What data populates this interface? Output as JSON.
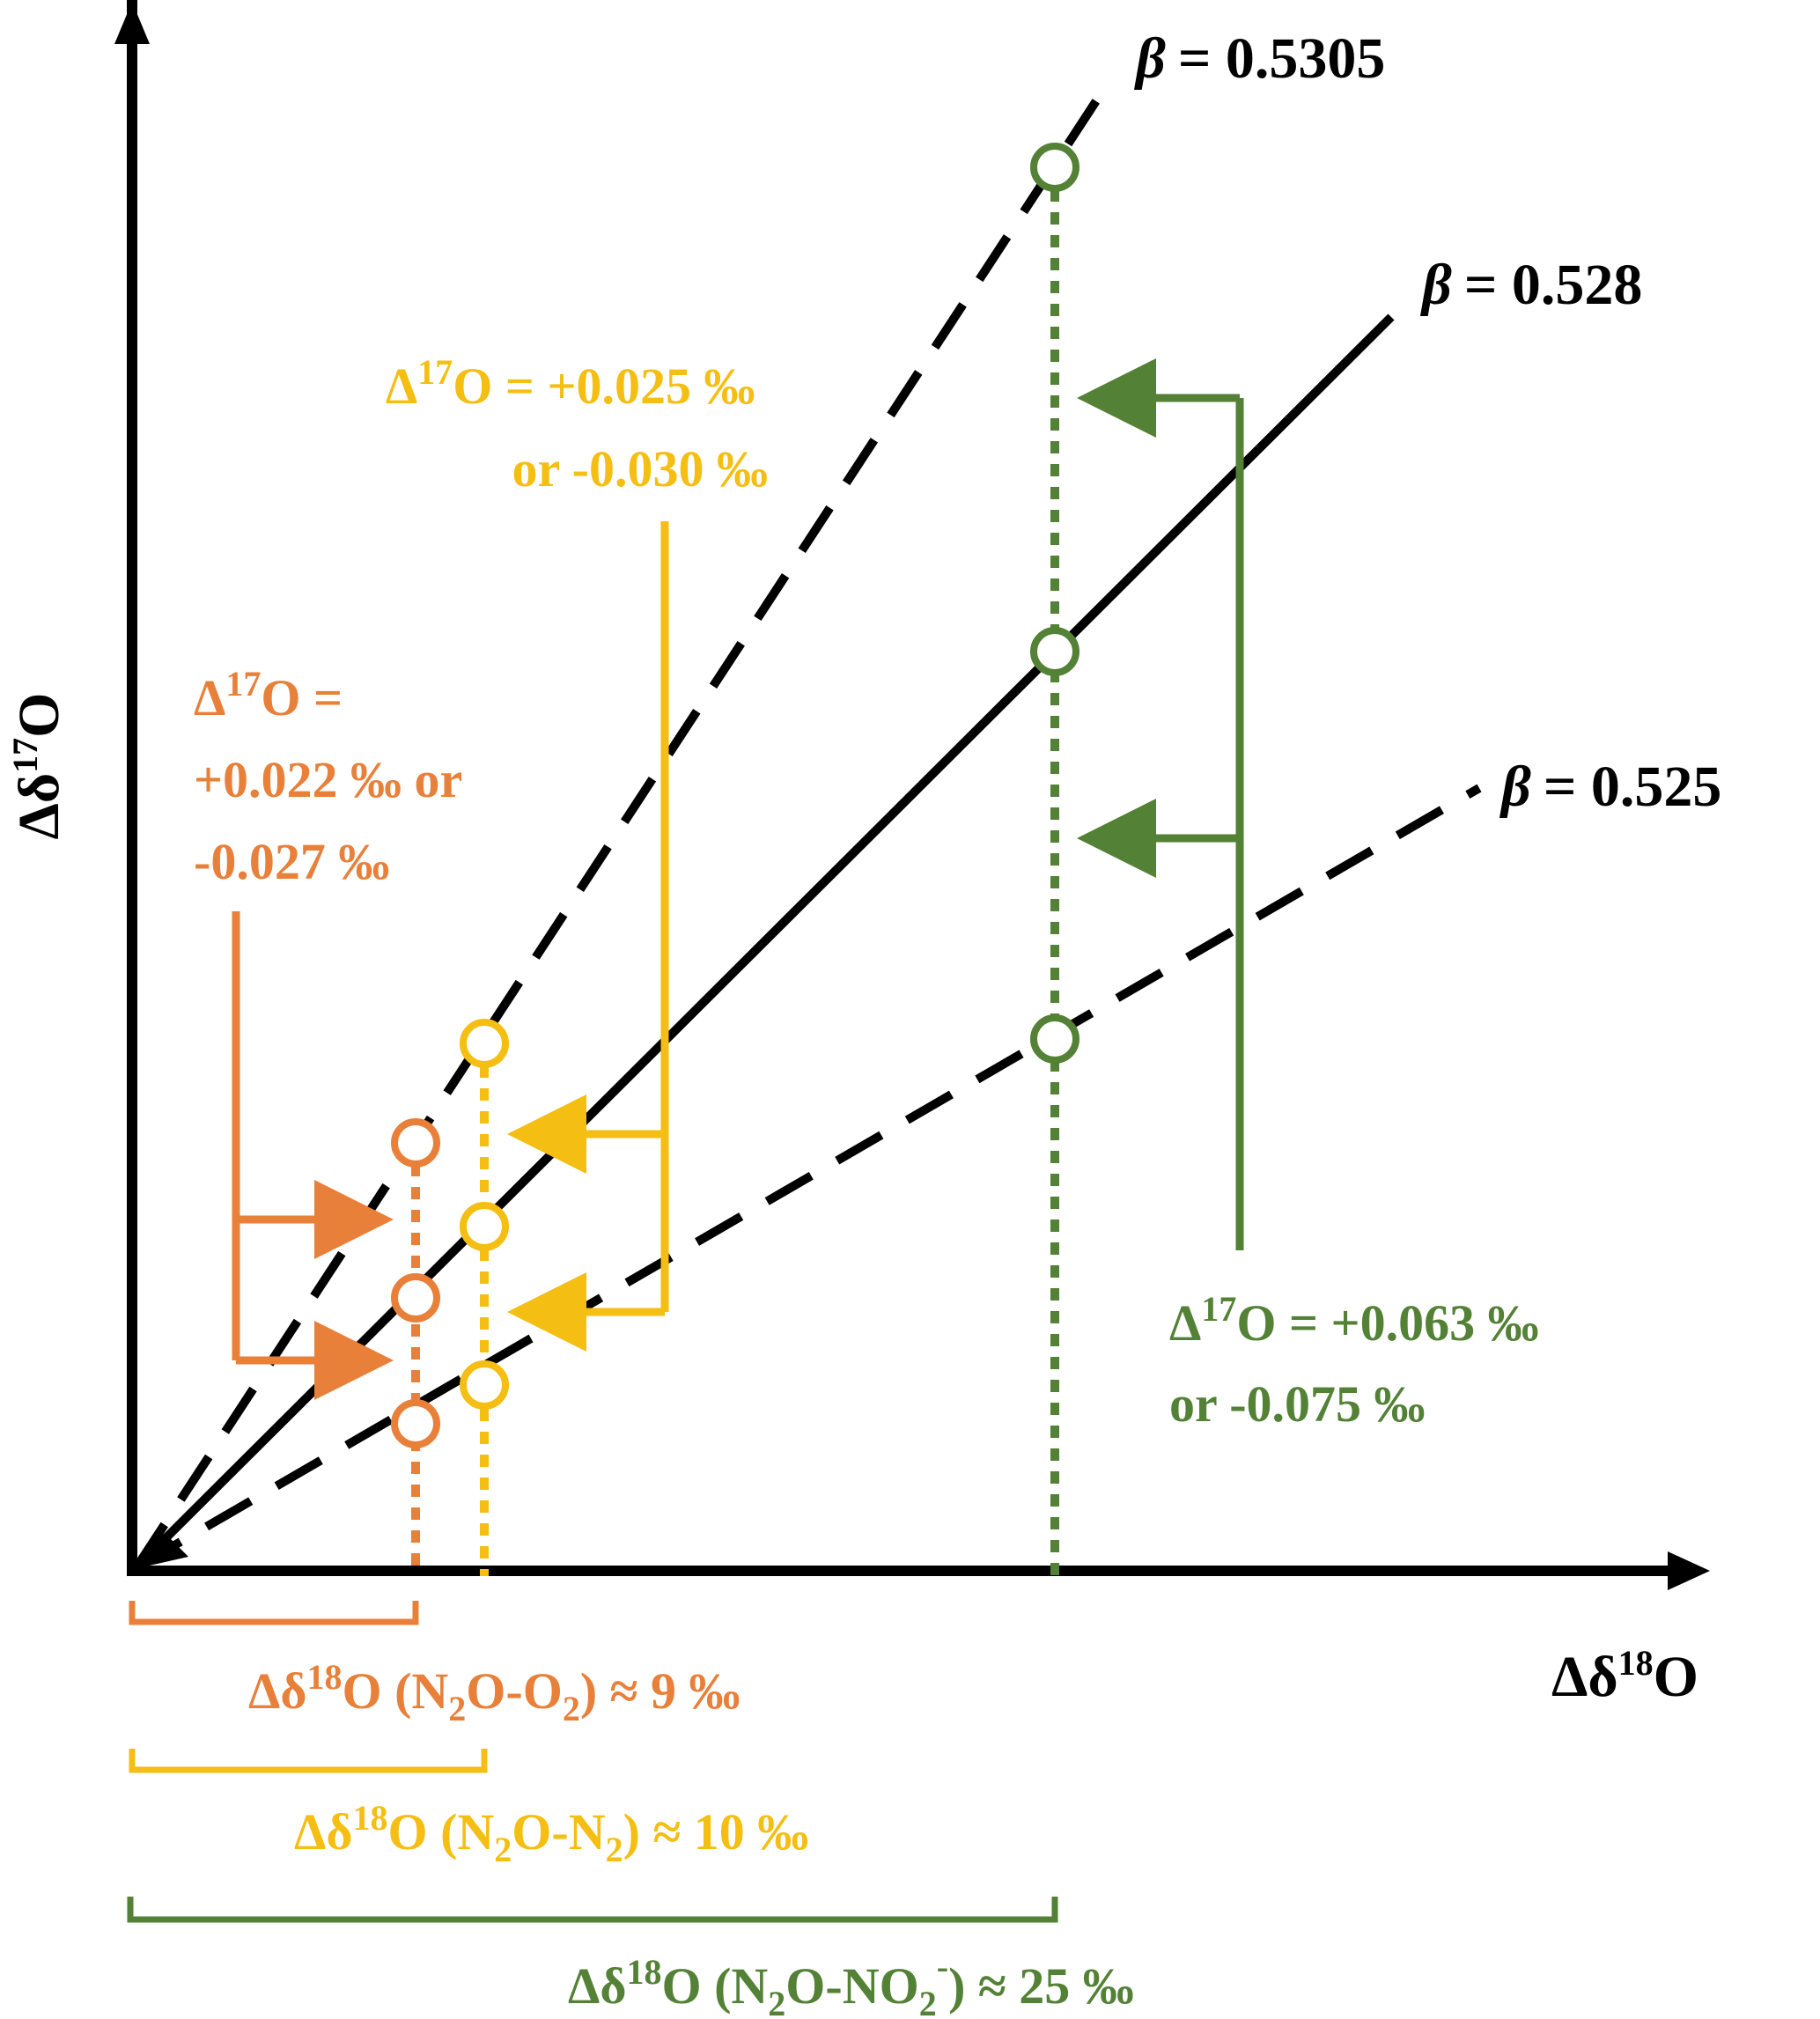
{
  "colors": {
    "axis": "#000000",
    "n2o_o2": "#E8803A",
    "n2o_n2": "#F5BE12",
    "n2o_no2": "#538135"
  },
  "axes": {
    "y_label": {
      "pre": "Δδ",
      "sup": "17",
      "post": "O"
    },
    "x_label": {
      "pre": "Δδ",
      "sup": "18",
      "post": "O"
    }
  },
  "lines": [
    {
      "symbol": "β",
      "text": "= 0.5305",
      "style": "dashed"
    },
    {
      "symbol": "β",
      "text": "= 0.528",
      "style": "solid"
    },
    {
      "symbol": "β",
      "text": "= 0.525",
      "style": "dashed"
    }
  ],
  "annotations": {
    "n2o_o2": {
      "line1": {
        "pre": "Δ",
        "sup": "17",
        "post": "O ="
      },
      "line2": "+0.022 ‰ or",
      "line3": "-0.027 ‰"
    },
    "n2o_n2": {
      "line1": {
        "pre": "Δ",
        "sup": "17",
        "post": "O = +0.025 ‰"
      },
      "line2": "or -0.030 ‰"
    },
    "n2o_no2": {
      "line1": {
        "pre": "Δ",
        "sup": "17",
        "post": "O = +0.063 ‰"
      },
      "line2": "or -0.075 ‰"
    }
  },
  "brackets": {
    "n2o_o2": {
      "pre": "Δδ",
      "sup": "18",
      "mid": "O (N",
      "sub1": "2",
      "mid2": "O-O",
      "sub2": "2",
      "post": ") ≈ 9 ‰"
    },
    "n2o_n2": {
      "pre": "Δδ",
      "sup": "18",
      "mid": "O (N",
      "sub1": "2",
      "mid2": "O-N",
      "sub2": "2",
      "post": ") ≈ 10 ‰"
    },
    "n2o_no2": {
      "pre": "Δδ",
      "sup": "18",
      "mid": "O (N",
      "sub1": "2",
      "mid2": "O-NO",
      "sub2": "2",
      "sup2": "-",
      "post": ") ≈ 25 ‰"
    }
  }
}
